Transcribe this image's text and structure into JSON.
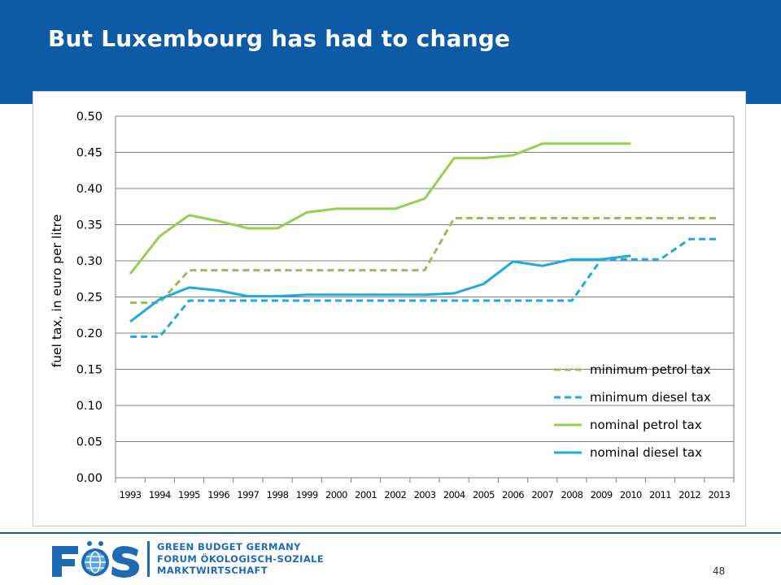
{
  "slide": {
    "title": "But Luxembourg has had to change",
    "page_number": "48"
  },
  "logo": {
    "mark_text": "FÖS",
    "line1": "GREEN BUDGET GERMANY",
    "line2": "FORUM ÖKOLOGISCH-SOZIALE",
    "line3": "MARKTWIRTSCHAFT",
    "colors": {
      "blue": "#1e6ab5",
      "globe": "#5aa6de"
    }
  },
  "colors": {
    "header": "#0d5aa7",
    "petrol": "#92d050",
    "min_petrol": "#9bbb59",
    "diesel": "#1fa9e1",
    "grid": "#7f7f7f"
  },
  "chart_data": {
    "type": "line",
    "ylabel": "fuel tax, in euro per litre",
    "xlabel": "",
    "ylim": [
      0,
      0.5
    ],
    "yticks": [
      "0.00",
      "0.05",
      "0.10",
      "0.15",
      "0.20",
      "0.25",
      "0.30",
      "0.35",
      "0.40",
      "0.45",
      "0.50"
    ],
    "categories": [
      "1993",
      "1994",
      "1995",
      "1996",
      "1997",
      "1998",
      "1999",
      "2000",
      "2001",
      "2002",
      "2003",
      "2004",
      "2005",
      "2006",
      "2007",
      "2008",
      "2009",
      "2010",
      "2011",
      "2012",
      "2013"
    ],
    "grid": true,
    "legend_position": "bottom-right",
    "series": [
      {
        "name": "minimum petrol tax",
        "style": "dashed",
        "color": "#9bbb59",
        "values": [
          0.242,
          0.242,
          0.287,
          0.287,
          0.287,
          0.287,
          0.287,
          0.287,
          0.287,
          0.287,
          0.287,
          0.359,
          0.359,
          0.359,
          0.359,
          0.359,
          0.359,
          0.359,
          0.359,
          0.359,
          0.359
        ]
      },
      {
        "name": "minimum diesel tax",
        "style": "dashed",
        "color": "#1fa9e1",
        "values": [
          0.195,
          0.195,
          0.245,
          0.245,
          0.245,
          0.245,
          0.245,
          0.245,
          0.245,
          0.245,
          0.245,
          0.245,
          0.245,
          0.245,
          0.245,
          0.245,
          0.302,
          0.302,
          0.302,
          0.33,
          0.33
        ]
      },
      {
        "name": "nominal petrol tax",
        "style": "solid",
        "color": "#92d050",
        "values": [
          0.282,
          0.334,
          0.363,
          0.355,
          0.345,
          0.345,
          0.367,
          0.372,
          0.372,
          0.372,
          0.386,
          0.442,
          0.442,
          0.446,
          0.462,
          0.462,
          0.462,
          0.462,
          null,
          null,
          null
        ]
      },
      {
        "name": "nominal diesel tax",
        "style": "solid",
        "color": "#1fa9e1",
        "values": [
          0.216,
          0.247,
          0.263,
          0.259,
          0.251,
          0.251,
          0.253,
          0.253,
          0.253,
          0.253,
          0.253,
          0.255,
          0.268,
          0.299,
          0.293,
          0.302,
          0.302,
          0.307,
          null,
          null,
          null
        ]
      }
    ]
  }
}
